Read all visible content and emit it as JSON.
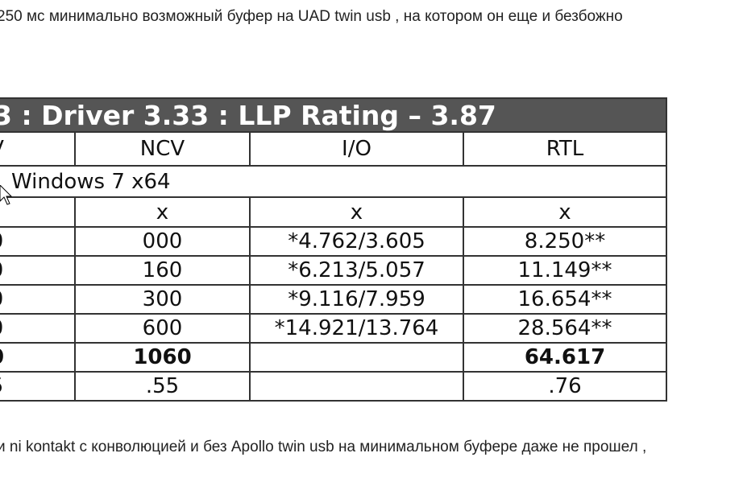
{
  "top_text": "250 мс минимально возможный буфер на UAD twin usb , на котором он еще и безбожно",
  "table": {
    "title": "3 :  Driver  3.33 : LLP Rating – 3.87",
    "header": [
      "V",
      "NCV",
      "I/O",
      "RTL"
    ],
    "os_row": "Windows 7 x64",
    "rows": [
      [
        "",
        "x",
        "x",
        "x"
      ],
      [
        "0",
        "000",
        "*4.762/3.605",
        "8.250**"
      ],
      [
        "0",
        "160",
        "*6.213/5.057",
        "11.149**"
      ],
      [
        "0",
        "300",
        "*9.116/7.959",
        "16.654**"
      ],
      [
        "0",
        "600",
        "*14.921/13.764",
        "28.564**"
      ],
      [
        "0",
        "1060",
        "",
        "64.617"
      ],
      [
        "5",
        ".55",
        "",
        ".76"
      ]
    ],
    "bold_row": 5
  },
  "bottom_text": "и ni kontakt с конволюцией и без Apollo twin usb на минимальном буфере даже не прошел ,"
}
